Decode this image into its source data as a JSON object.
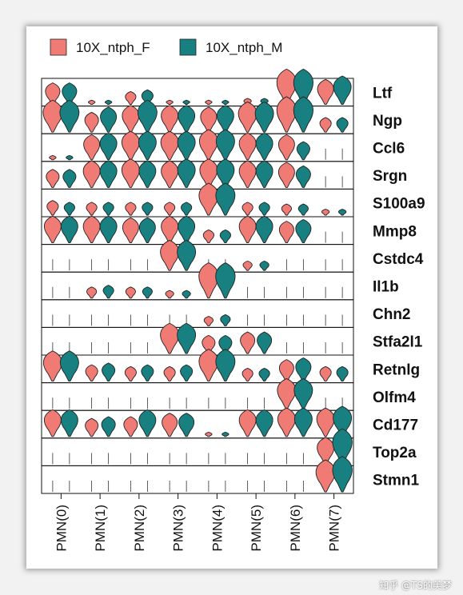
{
  "chart_data": {
    "type": "violin",
    "legend_position": "top-left",
    "series": [
      {
        "name": "10X_ntph_F",
        "color": "#F07A74"
      },
      {
        "name": "10X_ntph_M",
        "color": "#188080"
      }
    ],
    "clusters": [
      "PMN(0)",
      "PMN(1)",
      "PMN(2)",
      "PMN(3)",
      "PMN(4)",
      "PMN(5)",
      "PMN(6)",
      "PMN(7)"
    ],
    "genes": [
      "Ltf",
      "Ngp",
      "Ccl6",
      "Srgn",
      "S100a9",
      "Mmp8",
      "Cstdc4",
      "Il1b",
      "Chn2",
      "Stfa2l1",
      "Retnlg",
      "Olfm4",
      "Cd177",
      "Top2a",
      "Stmn1"
    ],
    "relative_expression": [
      [
        [
          0.6,
          0.6
        ],
        [
          0.1,
          0.1
        ],
        [
          0.35,
          0.4
        ],
        [
          0.1,
          0.1
        ],
        [
          0.1,
          0.1
        ],
        [
          0.15,
          0.15
        ],
        [
          1.0,
          1.0
        ],
        [
          0.7,
          0.8
        ]
      ],
      [
        [
          0.9,
          0.9
        ],
        [
          0.55,
          0.7
        ],
        [
          0.75,
          0.9
        ],
        [
          0.75,
          0.75
        ],
        [
          0.7,
          0.75
        ],
        [
          0.85,
          0.85
        ],
        [
          1.0,
          1.0
        ],
        [
          0.4,
          0.4
        ]
      ],
      [
        [
          0.1,
          0.1
        ],
        [
          0.7,
          0.75
        ],
        [
          0.8,
          0.8
        ],
        [
          0.8,
          0.8
        ],
        [
          0.85,
          0.85
        ],
        [
          0.75,
          0.75
        ],
        [
          0.7,
          0.5
        ],
        [
          0.05,
          0.05
        ]
      ],
      [
        [
          0.5,
          0.5
        ],
        [
          0.75,
          0.75
        ],
        [
          0.8,
          0.75
        ],
        [
          0.75,
          0.8
        ],
        [
          0.8,
          0.8
        ],
        [
          0.75,
          0.75
        ],
        [
          0.7,
          0.6
        ],
        [
          0.05,
          0.05
        ]
      ],
      [
        [
          0.4,
          0.35
        ],
        [
          0.35,
          0.35
        ],
        [
          0.35,
          0.35
        ],
        [
          0.35,
          0.35
        ],
        [
          0.9,
          0.9
        ],
        [
          0.35,
          0.35
        ],
        [
          0.3,
          0.3
        ],
        [
          0.15,
          0.15
        ]
      ],
      [
        [
          0.75,
          0.75
        ],
        [
          0.75,
          0.75
        ],
        [
          0.7,
          0.7
        ],
        [
          0.75,
          0.75
        ],
        [
          0.35,
          0.35
        ],
        [
          0.75,
          0.75
        ],
        [
          0.6,
          0.65
        ],
        [
          0.05,
          0.05
        ]
      ],
      [
        [
          0.05,
          0.05
        ],
        [
          0.05,
          0.05
        ],
        [
          0.05,
          0.05
        ],
        [
          0.85,
          0.85
        ],
        [
          0.05,
          0.05
        ],
        [
          0.25,
          0.25
        ],
        [
          0.05,
          0.05
        ],
        [
          0.05,
          0.05
        ]
      ],
      [
        [
          0.05,
          0.05
        ],
        [
          0.3,
          0.35
        ],
        [
          0.3,
          0.3
        ],
        [
          0.2,
          0.2
        ],
        [
          1.0,
          1.0
        ],
        [
          0.05,
          0.05
        ],
        [
          0.05,
          0.05
        ],
        [
          0.05,
          0.05
        ]
      ],
      [
        [
          0.05,
          0.05
        ],
        [
          0.05,
          0.05
        ],
        [
          0.05,
          0.05
        ],
        [
          0.05,
          0.05
        ],
        [
          0.25,
          0.3
        ],
        [
          0.05,
          0.05
        ],
        [
          0.05,
          0.05
        ],
        [
          0.05,
          0.05
        ]
      ],
      [
        [
          0.05,
          0.05
        ],
        [
          0.05,
          0.05
        ],
        [
          0.05,
          0.05
        ],
        [
          0.85,
          0.85
        ],
        [
          0.5,
          0.5
        ],
        [
          0.6,
          0.6
        ],
        [
          0.05,
          0.05
        ],
        [
          0.05,
          0.05
        ]
      ],
      [
        [
          0.85,
          0.85
        ],
        [
          0.45,
          0.5
        ],
        [
          0.4,
          0.45
        ],
        [
          0.4,
          0.45
        ],
        [
          0.9,
          0.9
        ],
        [
          0.35,
          0.35
        ],
        [
          0.6,
          0.65
        ],
        [
          0.4,
          0.4
        ]
      ],
      [
        [
          0.05,
          0.05
        ],
        [
          0.05,
          0.05
        ],
        [
          0.05,
          0.05
        ],
        [
          0.05,
          0.05
        ],
        [
          0.05,
          0.05
        ],
        [
          0.05,
          0.05
        ],
        [
          0.85,
          0.85
        ],
        [
          0.05,
          0.05
        ]
      ],
      [
        [
          0.75,
          0.75
        ],
        [
          0.5,
          0.55
        ],
        [
          0.55,
          0.75
        ],
        [
          0.65,
          0.65
        ],
        [
          0.1,
          0.1
        ],
        [
          0.75,
          0.75
        ],
        [
          0.8,
          0.8
        ],
        [
          0.8,
          0.85
        ]
      ],
      [
        [
          0.05,
          0.05
        ],
        [
          0.05,
          0.05
        ],
        [
          0.05,
          0.05
        ],
        [
          0.05,
          0.05
        ],
        [
          0.05,
          0.05
        ],
        [
          0.05,
          0.05
        ],
        [
          0.05,
          0.05
        ],
        [
          0.75,
          1.0
        ]
      ],
      [
        [
          0.05,
          0.05
        ],
        [
          0.05,
          0.05
        ],
        [
          0.05,
          0.05
        ],
        [
          0.05,
          0.05
        ],
        [
          0.05,
          0.05
        ],
        [
          0.05,
          0.05
        ],
        [
          0.05,
          0.05
        ],
        [
          0.9,
          1.0
        ]
      ]
    ],
    "grid": false
  },
  "watermark": "知乎 @TS的美梦"
}
